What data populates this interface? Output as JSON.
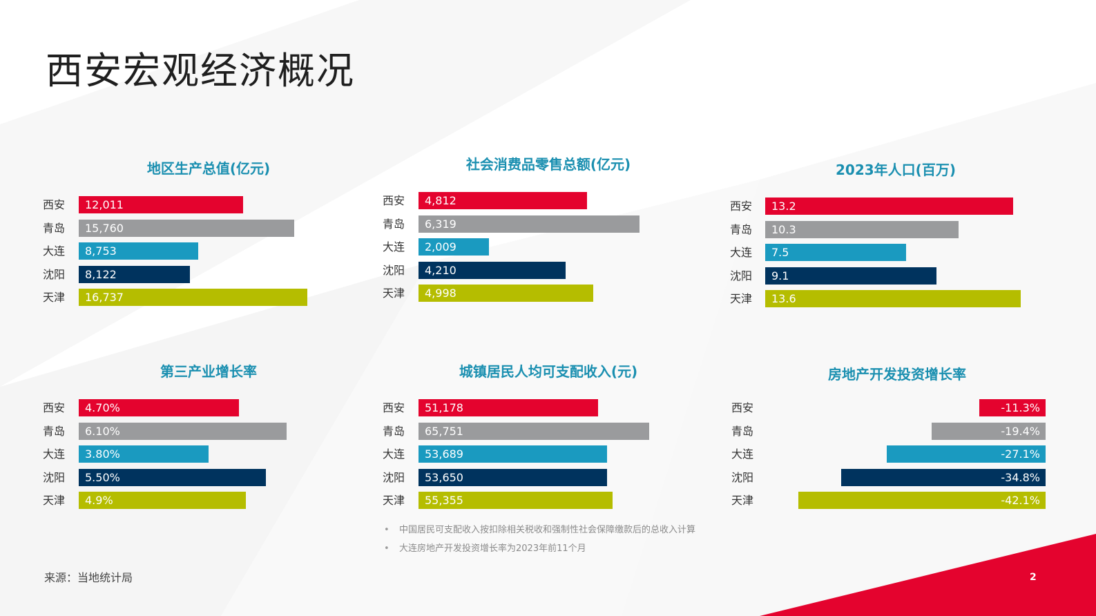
{
  "page": {
    "title": "西安宏观经济概况",
    "source": "来源：当地统计局",
    "page_number": "2",
    "notes": [
      "中国居民可支配收入按扣除相关税收和强制性社会保障缴款后的总收入计算",
      "大连房地产开发投资增长率为2023年前11个月"
    ]
  },
  "colors": {
    "xian": "#e4032e",
    "qingdao": "#9a9b9d",
    "dalian": "#1a9ac0",
    "shenyang": "#00335e",
    "tianjin": "#b5bd00",
    "title_accent": "#1a8fb0",
    "corner": "#e4032e"
  },
  "chart_data": [
    {
      "type": "bar",
      "orientation": "horizontal",
      "title": "地区生产总值(亿元)",
      "categories": [
        "西安",
        "青岛",
        "大连",
        "沈阳",
        "天津"
      ],
      "values": [
        12011,
        15760,
        8753,
        8122,
        16737
      ],
      "value_labels": [
        "12,011",
        "15,760",
        "8,753",
        "8,122",
        "16,737"
      ],
      "xlim": [
        0,
        16737
      ]
    },
    {
      "type": "bar",
      "orientation": "horizontal",
      "title": "社会消费品零售总额(亿元)",
      "categories": [
        "西安",
        "青岛",
        "大连",
        "沈阳",
        "天津"
      ],
      "values": [
        4812,
        6319,
        2009,
        4210,
        4998
      ],
      "value_labels": [
        "4,812",
        "6,319",
        "2,009",
        "4,210",
        "4,998"
      ],
      "xlim": [
        0,
        6319
      ]
    },
    {
      "type": "bar",
      "orientation": "horizontal",
      "title": "2023年人口(百万)",
      "categories": [
        "西安",
        "青岛",
        "大连",
        "沈阳",
        "天津"
      ],
      "values": [
        13.2,
        10.3,
        7.5,
        9.1,
        13.6
      ],
      "value_labels": [
        "13.2",
        "10.3",
        "7.5",
        "9.1",
        "13.6"
      ],
      "xlim": [
        0,
        13.6
      ]
    },
    {
      "type": "bar",
      "orientation": "horizontal",
      "title": "第三产业增长率",
      "categories": [
        "西安",
        "青岛",
        "大连",
        "沈阳",
        "天津"
      ],
      "values": [
        4.7,
        6.1,
        3.8,
        5.5,
        4.9
      ],
      "value_labels": [
        "4.70%",
        "6.10%",
        "3.80%",
        "5.50%",
        "4.9%"
      ],
      "xlim": [
        0,
        6.1
      ]
    },
    {
      "type": "bar",
      "orientation": "horizontal",
      "title": "城镇居民人均可支配收入(元)",
      "categories": [
        "西安",
        "青岛",
        "大连",
        "沈阳",
        "天津"
      ],
      "values": [
        51178,
        65751,
        53689,
        53650,
        55355
      ],
      "value_labels": [
        "51,178",
        "65,751",
        "53,689",
        "53,650",
        "55,355"
      ],
      "xlim": [
        0,
        65751
      ]
    },
    {
      "type": "bar",
      "orientation": "horizontal",
      "title": "房地产开发投资增长率",
      "categories": [
        "西安",
        "青岛",
        "大连",
        "沈阳",
        "天津"
      ],
      "values": [
        -11.3,
        -19.4,
        -27.1,
        -34.8,
        -42.1
      ],
      "value_labels": [
        "-11.3%",
        "-19.4%",
        "-27.1%",
        "-34.8%",
        "-42.1%"
      ],
      "xlim": [
        -42.1,
        0
      ]
    }
  ]
}
